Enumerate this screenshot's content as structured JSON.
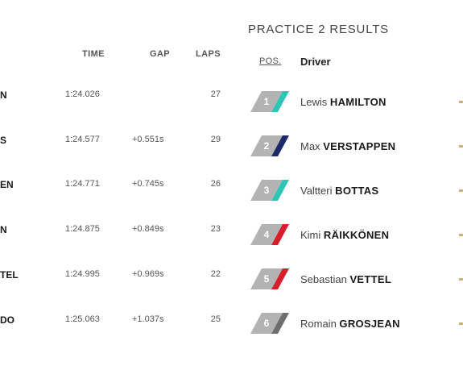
{
  "left_table": {
    "headers": {
      "time": "TIME",
      "gap": "GAP",
      "laps": "LAPS"
    },
    "rows": [
      {
        "name_fragment": "N",
        "time": "1:24.026",
        "gap": "",
        "laps": "27"
      },
      {
        "name_fragment": "S",
        "time": "1:24.577",
        "gap": "+0.551s",
        "laps": "29"
      },
      {
        "name_fragment": "EN",
        "time": "1:24.771",
        "gap": "+0.745s",
        "laps": "26"
      },
      {
        "name_fragment": "N",
        "time": "1:24.875",
        "gap": "+0.849s",
        "laps": "23"
      },
      {
        "name_fragment": "TEL",
        "time": "1:24.995",
        "gap": "+0.969s",
        "laps": "22"
      },
      {
        "name_fragment": "DO",
        "time": "1:25.063",
        "gap": "+1.037s",
        "laps": "25"
      }
    ]
  },
  "right_table": {
    "title": "PRACTICE 2 RESULTS",
    "headers": {
      "pos": "POS.",
      "driver": "Driver"
    },
    "rows": [
      {
        "pos": "1",
        "first": "Lewis",
        "last": "HAMILTON",
        "team_color": "#2ec4b6"
      },
      {
        "pos": "2",
        "first": "Max",
        "last": "VERSTAPPEN",
        "team_color": "#1b2a6b"
      },
      {
        "pos": "3",
        "first": "Valtteri",
        "last": "BOTTAS",
        "team_color": "#2ec4b6"
      },
      {
        "pos": "4",
        "first": "Kimi",
        "last": "RÄIKKÖNEN",
        "team_color": "#d81e2c"
      },
      {
        "pos": "5",
        "first": "Sebastian",
        "last": "VETTEL",
        "team_color": "#d81e2c"
      },
      {
        "pos": "6",
        "first": "Romain",
        "last": "GROSJEAN",
        "team_color": "#6e6e6e"
      }
    ]
  }
}
